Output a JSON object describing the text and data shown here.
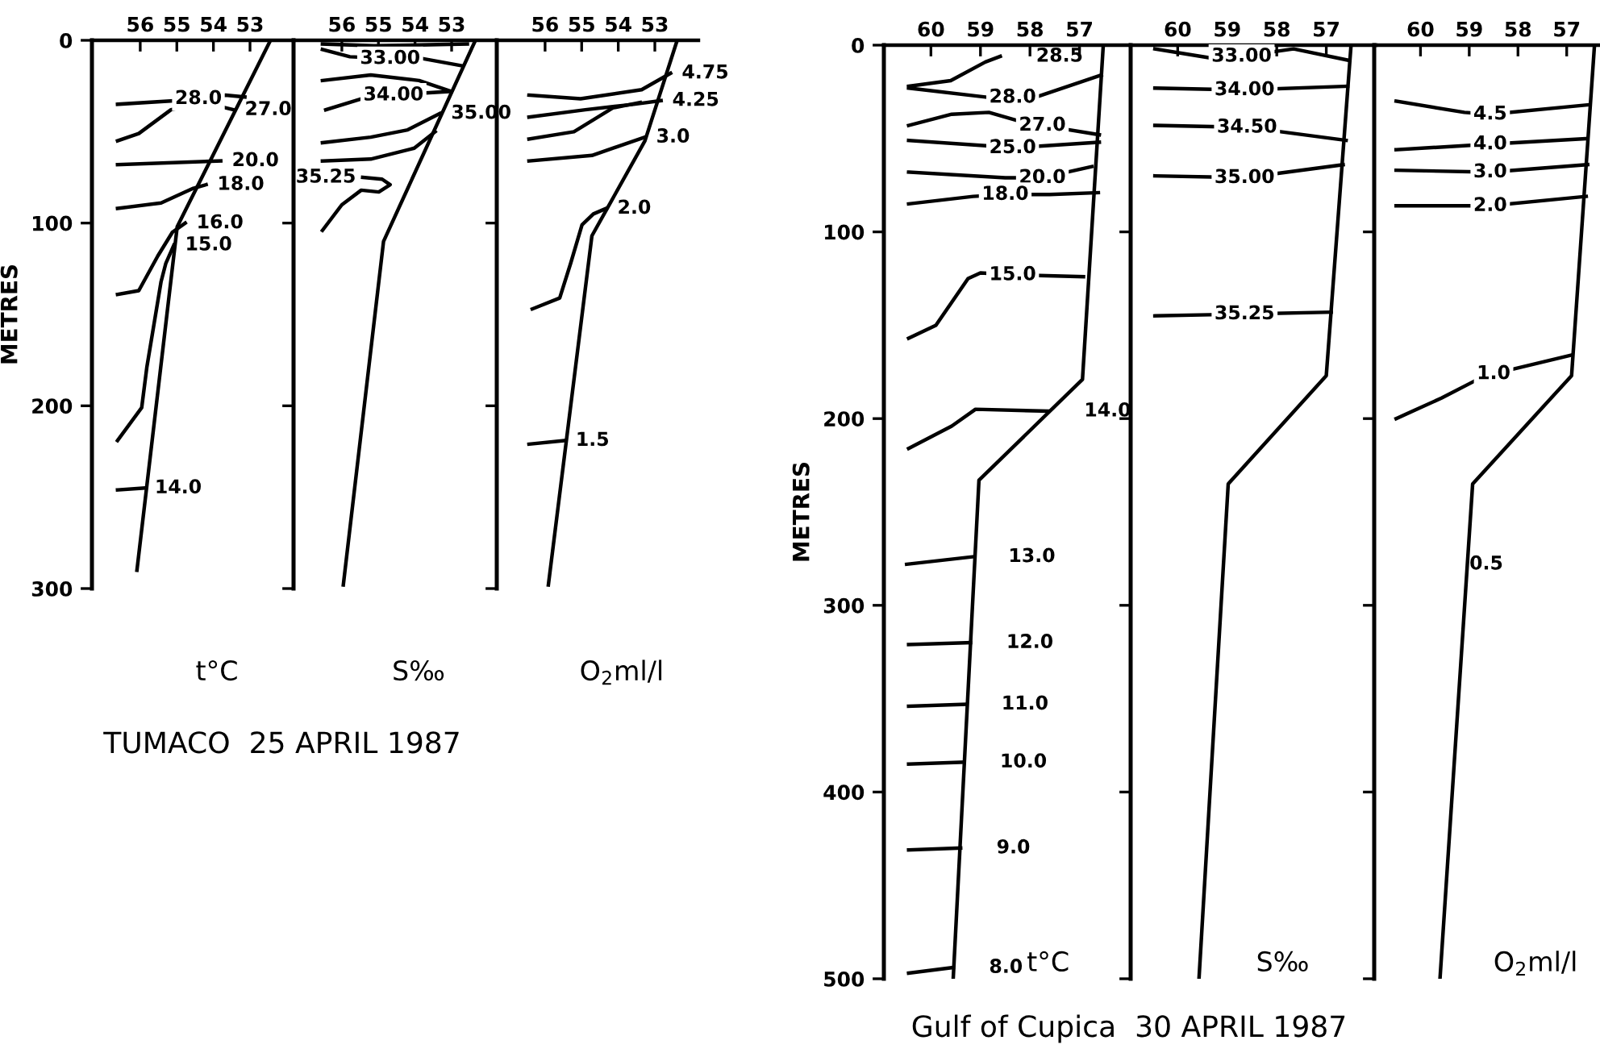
{
  "chart_data": [
    {
      "type": "line",
      "ylabel": "METRES",
      "xlabel": "t°C",
      "title": "TUMACO  25 APRIL 1987",
      "line_style": "solid",
      "xlim": [
        57.32,
        51.81
      ],
      "ylim": [
        300,
        0
      ],
      "yticks": [
        0,
        100,
        200,
        300
      ],
      "xticks": [
        56,
        55,
        54,
        53
      ],
      "series": [
        {
          "color": "#000000",
          "x": [
            52.44,
            54.99,
            56.09
          ],
          "values": [
            0,
            102,
            290
          ]
        },
        {
          "color": "#000000",
          "x": [
            56.62,
            54.99,
            54.41,
            53.67,
            53.14
          ],
          "values": [
            35,
            33,
            32,
            30,
            31
          ]
        },
        {
          "color": "#000000",
          "x": [
            56.62,
            56.04,
            55.16,
            54.28,
            53.45
          ],
          "values": [
            55,
            51,
            38,
            34,
            38
          ]
        },
        {
          "color": "#000000",
          "x": [
            56.62,
            53.8
          ],
          "values": [
            68,
            66
          ]
        },
        {
          "color": "#000000",
          "x": [
            56.62,
            55.43,
            54.55,
            54.2
          ],
          "values": [
            92,
            89,
            81,
            79
          ]
        },
        {
          "color": "#000000",
          "x": [
            56.62,
            56.04,
            55.52,
            55.12,
            54.77
          ],
          "values": [
            139,
            137,
            118,
            105,
            100
          ]
        },
        {
          "color": "#000000",
          "x": [
            56.62,
            55.96,
            55.82,
            55.43,
            55.3,
            55.08
          ],
          "values": [
            219,
            201,
            179,
            132,
            122,
            112
          ]
        },
        {
          "color": "#000000",
          "x": [
            56.62,
            55.91
          ],
          "values": [
            246,
            245
          ]
        }
      ],
      "annotations": [
        {
          "text": "28.0",
          "x": 54.41,
          "y": 32
        },
        {
          "text": "27.0",
          "x": 53.45,
          "y": 38
        },
        {
          "text": "20.0",
          "x": 53.8,
          "y": 66
        },
        {
          "text": "18.0",
          "x": 54.2,
          "y": 79
        },
        {
          "text": "16.0",
          "x": 54.77,
          "y": 100
        },
        {
          "text": "15.0",
          "x": 55.08,
          "y": 112
        },
        {
          "text": "14.0",
          "x": 55.91,
          "y": 245
        }
      ]
    },
    {
      "type": "line",
      "xlabel": "S‰",
      "line_style": "solid",
      "tick_labels": "x",
      "xlim": [
        57.32,
        51.81
      ],
      "ylim": [
        300,
        0
      ],
      "yticks": [
        0,
        100,
        200,
        300
      ],
      "xticks": [
        56,
        55,
        54,
        53
      ],
      "series": [
        {
          "color": "#000000",
          "x": [
            52.35,
            54.86,
            55.96
          ],
          "values": [
            0,
            110,
            298
          ]
        },
        {
          "color": "#000000",
          "x": [
            56.53,
            55.12,
            52.57
          ],
          "values": [
            2,
            3,
            2
          ]
        },
        {
          "color": "#000000",
          "x": [
            56.53,
            55.78,
            54.68,
            53.8,
            52.7
          ],
          "values": [
            5,
            9,
            10,
            10,
            14
          ]
        },
        {
          "color": "#000000",
          "x": [
            56.53,
            55.21,
            53.89,
            53.01
          ],
          "values": [
            22,
            19,
            22,
            28
          ]
        },
        {
          "color": "#000000",
          "x": [
            56.44,
            55.47,
            54.59,
            53.89,
            53.01
          ],
          "values": [
            38,
            32,
            30,
            29,
            28
          ]
        },
        {
          "color": "#000000",
          "x": [
            56.53,
            55.21,
            54.2,
            53.32
          ],
          "values": [
            56,
            53,
            49,
            40
          ]
        },
        {
          "color": "#000000",
          "x": [
            56.53,
            55.21,
            54.02,
            53.45
          ],
          "values": [
            66,
            65,
            59,
            50
          ]
        },
        {
          "color": "#000000",
          "x": [
            55.43,
            54.9,
            54.68,
            54.99,
            55.47,
            56.0,
            56.53
          ],
          "values": [
            75,
            76,
            79,
            83,
            82,
            90,
            104
          ]
        }
      ],
      "annotations": [
        {
          "text": "33.00",
          "x": 54.68,
          "y": 10
        },
        {
          "text": "34.00",
          "x": 54.59,
          "y": 30
        },
        {
          "text": "35.00",
          "x": 53.32,
          "y": 40
        },
        {
          "text": "35.25",
          "x": 55.43,
          "y": 75
        }
      ]
    },
    {
      "type": "line",
      "xlabel": "O$_{2}$ml/l",
      "line_style": "solid",
      "tick_labels": "x",
      "xlim": [
        57.32,
        51.81
      ],
      "ylim": [
        300,
        0
      ],
      "yticks": [
        0,
        100,
        200,
        300
      ],
      "xticks": [
        56,
        55,
        54,
        53
      ],
      "series": [
        {
          "color": "#000000",
          "x": [
            52.39,
            53.27,
            54.72,
            55.91
          ],
          "values": [
            0,
            55,
            107,
            298
          ]
        },
        {
          "color": "#000000",
          "x": [
            56.44,
            55.03,
            53.36,
            52.57
          ],
          "values": [
            30,
            32,
            27,
            18
          ]
        },
        {
          "color": "#000000",
          "x": [
            56.44,
            54.9,
            53.58,
            52.83
          ],
          "values": [
            42,
            38,
            35,
            33
          ]
        },
        {
          "color": "#000000",
          "x": [
            56.44,
            55.21,
            54.15,
            53.4
          ],
          "values": [
            54,
            50,
            37,
            34
          ]
        },
        {
          "color": "#000000",
          "x": [
            56.44,
            54.72,
            53.27
          ],
          "values": [
            66,
            63,
            53
          ]
        },
        {
          "color": "#000000",
          "x": [
            56.35,
            55.6,
            55.3,
            54.99,
            54.68,
            54.33
          ],
          "values": [
            147,
            141,
            122,
            101,
            95,
            92
          ]
        },
        {
          "color": "#000000",
          "x": [
            56.44,
            55.47
          ],
          "values": [
            221,
            219
          ]
        }
      ],
      "annotations": [
        {
          "text": "4.75",
          "x": 52.57,
          "y": 18
        },
        {
          "text": "4.25",
          "x": 52.83,
          "y": 33
        },
        {
          "text": "3.0",
          "x": 53.27,
          "y": 53
        },
        {
          "text": "2.0",
          "x": 54.33,
          "y": 92
        },
        {
          "text": "1.5",
          "x": 55.47,
          "y": 219
        }
      ]
    },
    {
      "type": "line",
      "ylabel": "METRES",
      "xlabel": "t°C",
      "title": "Gulf of Cupica  30 APRIL 1987",
      "line_style": "solid",
      "xlim": [
        60.95,
        56.0
      ],
      "ylim": [
        500,
        0
      ],
      "yticks": [
        0,
        100,
        200,
        300,
        400,
        500
      ],
      "xticks": [
        60,
        59,
        58,
        57
      ],
      "series": [
        {
          "color": "#000000",
          "x": [
            56.52,
            56.94,
            59.03,
            59.55
          ],
          "values": [
            0,
            179,
            233,
            500
          ]
        },
        {
          "color": "#000000",
          "x": [
            60.45,
            59.6,
            58.9,
            58.6
          ],
          "values": [
            22,
            19,
            9,
            6
          ]
        },
        {
          "color": "#000000",
          "x": [
            60.45,
            58.83,
            58.35,
            57.9,
            56.56
          ],
          "values": [
            23,
            28,
            28,
            28,
            16
          ]
        },
        {
          "color": "#000000",
          "x": [
            60.45,
            59.58,
            58.83,
            58.18,
            57.75,
            56.6
          ],
          "values": [
            43,
            37,
            36,
            41,
            43,
            48
          ]
        },
        {
          "color": "#000000",
          "x": [
            60.45,
            58.83,
            58.35,
            56.6
          ],
          "values": [
            51,
            54,
            55,
            52
          ]
        },
        {
          "color": "#000000",
          "x": [
            60.45,
            58.5,
            57.75,
            56.75
          ],
          "values": [
            68,
            71,
            71,
            65
          ]
        },
        {
          "color": "#000000",
          "x": [
            60.45,
            59.15,
            58.5,
            57.6,
            56.62
          ],
          "values": [
            85,
            81,
            80,
            80,
            79
          ]
        },
        {
          "color": "#000000",
          "x": [
            60.45,
            59.9,
            59.25,
            59.0,
            58.35,
            56.92
          ],
          "values": [
            157,
            150,
            125,
            122,
            123,
            124
          ]
        },
        {
          "color": "#000000",
          "x": [
            60.45,
            59.58,
            59.1,
            57.63
          ],
          "values": [
            216,
            204,
            195,
            196
          ]
        },
        {
          "color": "#000000",
          "x": [
            60.49,
            59.16
          ],
          "values": [
            278,
            274
          ]
        },
        {
          "color": "#000000",
          "x": [
            60.45,
            59.2
          ],
          "values": [
            321,
            320
          ]
        },
        {
          "color": "#000000",
          "x": [
            60.45,
            59.3
          ],
          "values": [
            354,
            353
          ]
        },
        {
          "color": "#000000",
          "x": [
            60.45,
            59.33
          ],
          "values": [
            385,
            384
          ]
        },
        {
          "color": "#000000",
          "x": [
            60.45,
            59.4
          ],
          "values": [
            431,
            430
          ]
        },
        {
          "color": "#000000",
          "x": [
            60.45,
            59.55
          ],
          "values": [
            497,
            494
          ]
        }
      ],
      "annotations": [
        {
          "text": "28.5",
          "x": 58.6,
          "y": 6
        },
        {
          "text": "28.0",
          "x": 58.35,
          "y": 28
        },
        {
          "text": "27.0",
          "x": 57.75,
          "y": 43
        },
        {
          "text": "25.0",
          "x": 58.35,
          "y": 55
        },
        {
          "text": "20.0",
          "x": 57.75,
          "y": 71
        },
        {
          "text": "18.0",
          "x": 58.5,
          "y": 80
        },
        {
          "text": "15.0",
          "x": 58.35,
          "y": 123
        },
        {
          "text": "14.0",
          "x": 57.63,
          "y": 196
        },
        {
          "text": "13.0",
          "x": 59.16,
          "y": 274
        },
        {
          "text": "12.0",
          "x": 59.2,
          "y": 320
        },
        {
          "text": "11.0",
          "x": 59.3,
          "y": 353
        },
        {
          "text": "10.0",
          "x": 59.33,
          "y": 384
        },
        {
          "text": "9.0",
          "x": 59.4,
          "y": 430
        },
        {
          "text": "8.0",
          "x": 59.55,
          "y": 494
        }
      ]
    },
    {
      "type": "line",
      "xlabel": "S‰",
      "line_style": "solid",
      "tick_labels": "x",
      "xlim": [
        60.95,
        56.0
      ],
      "ylim": [
        500,
        0
      ],
      "yticks": [
        0,
        100,
        200,
        300,
        400,
        500
      ],
      "xticks": [
        60,
        59,
        58,
        57
      ],
      "series": [
        {
          "color": "#000000",
          "x": [
            56.5,
            57.0,
            58.98,
            59.57
          ],
          "values": [
            0,
            177,
            235,
            500
          ]
        },
        {
          "color": "#000000",
          "x": [
            60.46,
            59.3,
            58.71,
            57.66,
            56.57
          ],
          "values": [
            2,
            7,
            6,
            2,
            8
          ]
        },
        {
          "color": "#000000",
          "x": [
            60.46,
            58.65,
            56.57
          ],
          "values": [
            23,
            24,
            22
          ]
        },
        {
          "color": "#000000",
          "x": [
            60.46,
            58.6,
            56.6
          ],
          "values": [
            43,
            44,
            51
          ]
        },
        {
          "color": "#000000",
          "x": [
            60.46,
            58.65,
            56.66
          ],
          "values": [
            70,
            71,
            64
          ]
        },
        {
          "color": "#000000",
          "x": [
            60.46,
            58.65,
            56.9
          ],
          "values": [
            145,
            144,
            143
          ]
        }
      ],
      "annotations": [
        {
          "text": "33.00",
          "x": 58.71,
          "y": 6
        },
        {
          "text": "34.00",
          "x": 58.65,
          "y": 24
        },
        {
          "text": "34.50",
          "x": 58.6,
          "y": 44
        },
        {
          "text": "35.00",
          "x": 58.65,
          "y": 71
        },
        {
          "text": "35.25",
          "x": 58.65,
          "y": 144
        }
      ]
    },
    {
      "type": "line",
      "xlabel": "O$_{2}$ml/l",
      "line_style": "solid",
      "tick_labels": "x",
      "xlim": [
        60.95,
        56.35
      ],
      "ylim": [
        500,
        0
      ],
      "yticks": [
        0,
        100,
        200,
        300,
        400,
        500
      ],
      "xticks": [
        60,
        59,
        58,
        57
      ],
      "series": [
        {
          "color": "#000000",
          "x": [
            56.43,
            56.9,
            58.93,
            59.6
          ],
          "values": [
            0,
            177,
            235,
            500
          ]
        },
        {
          "color": "#000000",
          "x": [
            60.5,
            59.1,
            58.57,
            56.57
          ],
          "values": [
            30,
            36,
            37,
            32
          ]
        },
        {
          "color": "#000000",
          "x": [
            60.5,
            58.57,
            56.57
          ],
          "values": [
            56,
            53,
            50
          ]
        },
        {
          "color": "#000000",
          "x": [
            60.5,
            58.57,
            56.57
          ],
          "values": [
            67,
            68,
            64
          ]
        },
        {
          "color": "#000000",
          "x": [
            60.5,
            58.57,
            56.6
          ],
          "values": [
            86,
            86,
            81
          ]
        },
        {
          "color": "#000000",
          "x": [
            60.5,
            59.57,
            58.9,
            58.5,
            56.9
          ],
          "values": [
            200,
            189,
            180,
            176,
            166
          ]
        }
      ],
      "annotations": [
        {
          "text": "4.5",
          "x": 58.57,
          "y": 37
        },
        {
          "text": "4.0",
          "x": 58.57,
          "y": 53
        },
        {
          "text": "3.0",
          "x": 58.57,
          "y": 68
        },
        {
          "text": "2.0",
          "x": 58.57,
          "y": 86
        },
        {
          "text": "1.0",
          "x": 58.5,
          "y": 176
        },
        "0.5"
      ]
    }
  ]
}
